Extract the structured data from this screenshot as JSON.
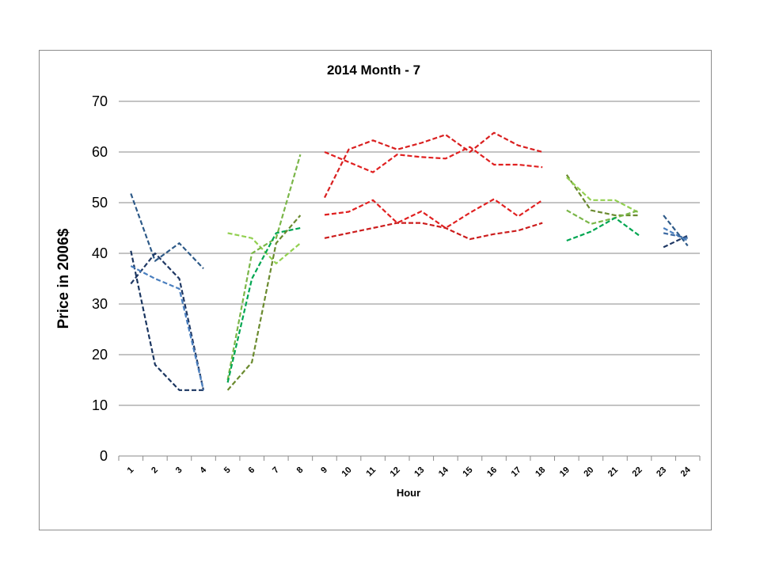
{
  "chart_data": {
    "type": "line",
    "title": "2014 Month - 7",
    "xlabel": "Hour",
    "ylabel": "Price in 2006$",
    "ylim": [
      0,
      70
    ],
    "yticks": [
      0,
      10,
      20,
      30,
      40,
      50,
      60,
      70
    ],
    "categories": [
      "1",
      "2",
      "3",
      "4",
      "5",
      "6",
      "7",
      "8",
      "9",
      "10",
      "11",
      "12",
      "13",
      "14",
      "15",
      "16",
      "17",
      "18",
      "19",
      "20",
      "21",
      "22",
      "23",
      "24"
    ],
    "grid": true,
    "legend": "none",
    "line_style": "dashed",
    "groups": [
      {
        "hours": [
          1,
          2,
          3,
          4
        ],
        "series": [
          {
            "color": "#2e5a88",
            "values": [
              51.8,
              38.5,
              42,
              37
            ]
          },
          {
            "color": "#1f3864",
            "values": [
              34,
              40,
              35,
              13
            ]
          },
          {
            "color": "#1a3560",
            "values": [
              40.5,
              18,
              13,
              13
            ]
          },
          {
            "color": "#4a7fbf",
            "values": [
              37.5,
              35,
              33,
              13
            ]
          }
        ]
      },
      {
        "hours": [
          5,
          6,
          7,
          8
        ],
        "series": [
          {
            "color": "#92d050",
            "values": [
              44,
              43,
              38,
              42
            ]
          },
          {
            "color": "#7ab648",
            "values": [
              15,
              40,
              43,
              59.5
            ]
          },
          {
            "color": "#00a651",
            "values": [
              14.5,
              35,
              44,
              45
            ]
          },
          {
            "color": "#6a8a2e",
            "values": [
              13,
              18.5,
              42,
              47.5
            ]
          }
        ]
      },
      {
        "hours": [
          9,
          10,
          11,
          12,
          13,
          14,
          15,
          16,
          17,
          18
        ],
        "series": [
          {
            "color": "#e02020",
            "values": [
              60,
              58,
              56,
              59.5,
              59,
              58.7,
              61,
              57.5,
              57.5,
              57
            ]
          },
          {
            "color": "#d91f1f",
            "values": [
              51,
              60.5,
              62.3,
              60.5,
              61.8,
              63.4,
              60,
              63.8,
              61.3,
              60
            ]
          },
          {
            "color": "#e02020",
            "values": [
              47.6,
              48.2,
              50.5,
              46,
              48.3,
              45,
              48,
              50.7,
              47.3,
              50.5
            ]
          },
          {
            "color": "#cc1c1c",
            "values": [
              43,
              44,
              45,
              46,
              46,
              45,
              42.8,
              43.8,
              44.5,
              46
            ]
          }
        ]
      },
      {
        "hours": [
          19,
          20,
          21,
          22
        ],
        "series": [
          {
            "color": "#6a8a2e",
            "values": [
              55.5,
              48.5,
              47.5,
              47.5
            ]
          },
          {
            "color": "#92d050",
            "values": [
              55,
              50.5,
              50.5,
              48
            ]
          },
          {
            "color": "#7ab648",
            "values": [
              48.5,
              45.8,
              47,
              48.5
            ]
          },
          {
            "color": "#00a651",
            "values": [
              42.5,
              44.3,
              47,
              43.5
            ]
          }
        ]
      },
      {
        "hours": [
          23,
          24
        ],
        "series": [
          {
            "color": "#2e5a88",
            "values": [
              47.5,
              41.5
            ]
          },
          {
            "color": "#1f3864",
            "values": [
              41.2,
              43.5
            ]
          },
          {
            "color": "#4a7fbf",
            "values": [
              45,
              42.5
            ]
          },
          {
            "color": "#3c6aa3",
            "values": [
              44,
              43
            ]
          }
        ]
      }
    ]
  }
}
